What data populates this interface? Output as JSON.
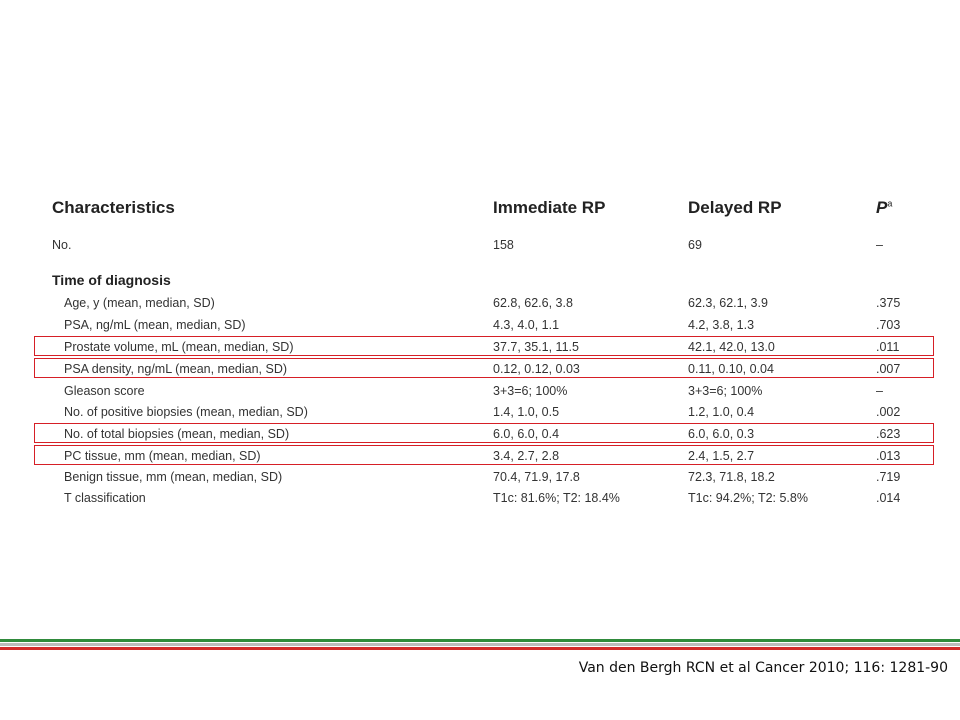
{
  "table": {
    "headers": {
      "characteristics": "Characteristics",
      "immediate": "Immediate RP",
      "delayed": "Delayed RP",
      "p": "P",
      "p_superscript": "a"
    },
    "rows": [
      {
        "label": "No.",
        "immediate": "158",
        "delayed": "69",
        "p": "–",
        "style": "plain"
      },
      {
        "label": "Time of diagnosis",
        "immediate": "",
        "delayed": "",
        "p": "",
        "style": "section"
      },
      {
        "label": "Age, y (mean, median, SD)",
        "immediate": "62.8, 62.6, 3.8",
        "delayed": "62.3, 62.1, 3.9",
        "p": ".375",
        "style": "indent"
      },
      {
        "label": "PSA, ng/mL (mean, median, SD)",
        "immediate": "4.3, 4.0, 1.1",
        "delayed": "4.2, 3.8, 1.3",
        "p": ".703",
        "style": "indent"
      },
      {
        "label": "Prostate volume, mL (mean, median, SD)",
        "immediate": "37.7, 35.1, 11.5",
        "delayed": "42.1, 42.0, 13.0",
        "p": ".011",
        "style": "indent",
        "highlight": true
      },
      {
        "label": "PSA density, ng/mL (mean, median, SD)",
        "immediate": "0.12, 0.12, 0.03",
        "delayed": "0.11, 0.10, 0.04",
        "p": ".007",
        "style": "indent",
        "highlight": true
      },
      {
        "label": "Gleason score",
        "immediate": "3+3=6; 100%",
        "delayed": "3+3=6; 100%",
        "p": "–",
        "style": "indent"
      },
      {
        "label": "No. of positive biopsies (mean, median, SD)",
        "immediate": "1.4, 1.0, 0.5",
        "delayed": "1.2, 1.0, 0.4",
        "p": ".002",
        "style": "indent"
      },
      {
        "label": "No. of total biopsies (mean, median, SD)",
        "immediate": "6.0, 6.0, 0.4",
        "delayed": "6.0, 6.0, 0.3",
        "p": ".623",
        "style": "indent",
        "highlight": true
      },
      {
        "label": "PC tissue, mm (mean, median, SD)",
        "immediate": "3.4, 2.7, 2.8",
        "delayed": "2.4, 1.5, 2.7",
        "p": ".013",
        "style": "indent",
        "highlight": true
      },
      {
        "label": "Benign tissue, mm (mean, median, SD)",
        "immediate": "70.4, 71.9, 17.8",
        "delayed": "72.3, 71.8, 18.2",
        "p": ".719",
        "style": "indent"
      },
      {
        "label": "T classification",
        "immediate": "T1c: 81.6%; T2: 18.4%",
        "delayed": "T1c: 94.2%; T2: 5.8%",
        "p": ".014",
        "style": "indent"
      }
    ]
  },
  "footer": {
    "citation": "Van den Bergh RCN et al Cancer 2010; 116: 1281-90"
  },
  "colors": {
    "highlight_border": "#d61f26",
    "rule_green": "#2f8a3b",
    "rule_gray": "#bcbcbc",
    "rule_red": "#d42a2a"
  }
}
